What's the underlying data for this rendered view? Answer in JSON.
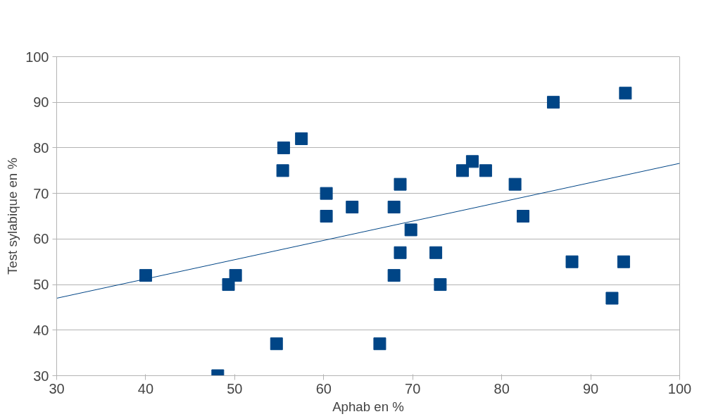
{
  "chart_data": {
    "type": "scatter",
    "xlabel": "Aphab en %",
    "ylabel": "Test sylabique en %",
    "grid": "y",
    "xlim": [
      30,
      100
    ],
    "ylim": [
      30,
      100
    ],
    "xticks": [
      30,
      40,
      50,
      60,
      70,
      80,
      90,
      100
    ],
    "yticks": [
      30,
      40,
      50,
      60,
      70,
      80,
      90,
      100
    ],
    "series": [
      {
        "marker": "square",
        "color": "#004586",
        "x": [
          40,
          48.1,
          49.3,
          50.1,
          54.7,
          55.4,
          55.5,
          57.5,
          60.3,
          60.3,
          63.2,
          66.3,
          67.9,
          67.9,
          68.6,
          68.6,
          69.8,
          72.6,
          73.1,
          75.6,
          76.7,
          78.2,
          81.5,
          82.4,
          85.8,
          87.9,
          92.4,
          93.7,
          93.9
        ],
        "values": [
          52,
          30,
          50,
          52,
          37,
          75,
          80,
          82,
          70,
          65,
          67,
          37,
          52,
          67,
          72,
          57,
          62,
          57,
          50,
          75,
          77,
          75,
          72,
          65,
          90,
          55,
          47,
          55,
          92
        ]
      },
      {
        "type": "line",
        "color": "#004586",
        "x": [
          30,
          100
        ],
        "values": [
          47,
          76.6
        ]
      }
    ]
  }
}
